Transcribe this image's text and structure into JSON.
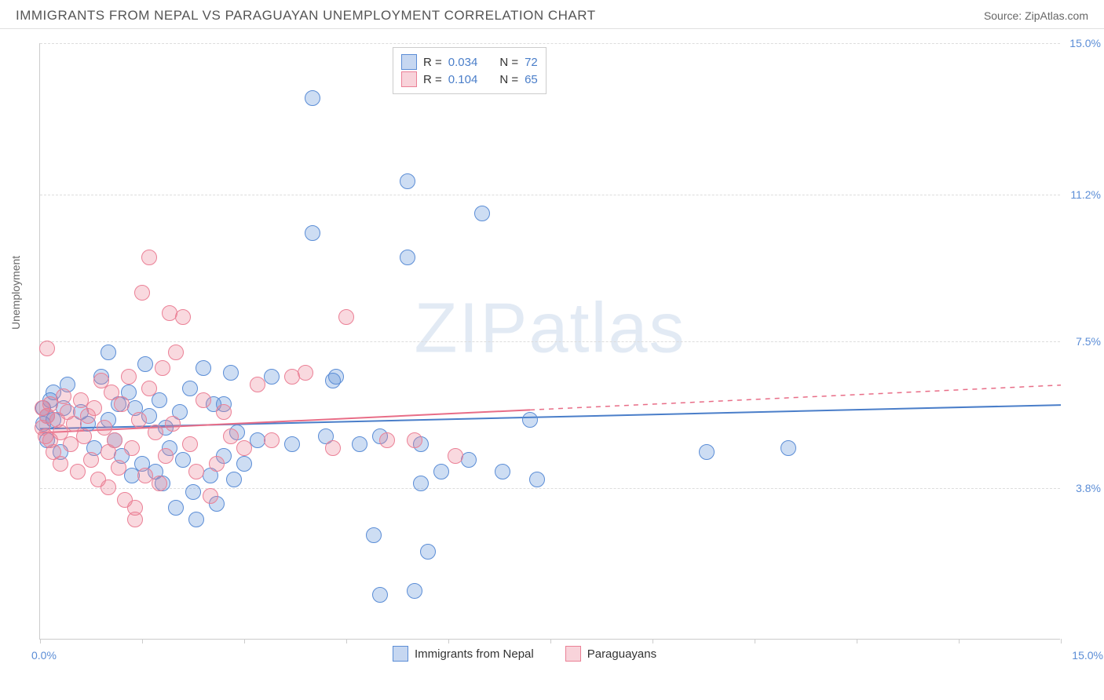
{
  "header": {
    "title": "IMMIGRANTS FROM NEPAL VS PARAGUAYAN UNEMPLOYMENT CORRELATION CHART",
    "source": "Source: ZipAtlas.com"
  },
  "chart": {
    "type": "scatter",
    "y_axis_label": "Unemployment",
    "xlim": [
      0,
      15
    ],
    "ylim": [
      0,
      15
    ],
    "x_axis_labels": [
      {
        "pos": 0,
        "text": "0.0%"
      },
      {
        "pos": 15,
        "text": "15.0%"
      }
    ],
    "x_ticks": [
      0,
      1.5,
      3,
      4.5,
      6,
      7.5,
      9,
      10.5,
      12,
      13.5,
      15
    ],
    "y_ticks": [
      {
        "val": 3.8,
        "label": "3.8%"
      },
      {
        "val": 7.5,
        "label": "7.5%"
      },
      {
        "val": 11.2,
        "label": "11.2%"
      },
      {
        "val": 15.0,
        "label": "15.0%"
      }
    ],
    "background_color": "#ffffff",
    "grid_color": "#dddddd",
    "axis_color": "#cccccc",
    "tick_label_color": "#5b8dd6",
    "watermark": "ZIPatlas",
    "legend_top": {
      "rows": [
        {
          "swatch": "blue",
          "r_label": "R =",
          "r_val": "0.034",
          "n_label": "N =",
          "n_val": "72"
        },
        {
          "swatch": "pink",
          "r_label": "R =",
          "r_val": "0.104",
          "n_label": "N =",
          "n_val": "65"
        }
      ]
    },
    "legend_bottom": [
      {
        "swatch": "blue",
        "label": "Immigrants from Nepal"
      },
      {
        "swatch": "pink",
        "label": "Paraguayans"
      }
    ],
    "series": [
      {
        "name": "Immigrants from Nepal",
        "color_fill": "rgba(91,141,214,0.30)",
        "color_stroke": "#5b8dd6",
        "marker_radius": 10,
        "trend": {
          "y_start": 5.3,
          "y_end": 5.9,
          "solid_until_x": 15,
          "color": "#4a7ec9",
          "width": 2
        },
        "points": [
          [
            0.05,
            5.4
          ],
          [
            0.05,
            5.8
          ],
          [
            0.1,
            5.6
          ],
          [
            0.1,
            5.0
          ],
          [
            0.15,
            6.0
          ],
          [
            0.2,
            5.5
          ],
          [
            0.2,
            6.2
          ],
          [
            0.3,
            4.7
          ],
          [
            0.35,
            5.8
          ],
          [
            0.4,
            6.4
          ],
          [
            0.6,
            5.7
          ],
          [
            0.7,
            5.4
          ],
          [
            0.8,
            4.8
          ],
          [
            0.9,
            6.6
          ],
          [
            1.0,
            5.5
          ],
          [
            1.0,
            7.2
          ],
          [
            1.1,
            5.0
          ],
          [
            1.15,
            5.9
          ],
          [
            1.2,
            4.6
          ],
          [
            1.3,
            6.2
          ],
          [
            1.35,
            4.1
          ],
          [
            1.4,
            5.8
          ],
          [
            1.5,
            4.4
          ],
          [
            1.55,
            6.9
          ],
          [
            1.6,
            5.6
          ],
          [
            1.7,
            4.2
          ],
          [
            1.75,
            6.0
          ],
          [
            1.8,
            3.9
          ],
          [
            1.85,
            5.3
          ],
          [
            1.9,
            4.8
          ],
          [
            2.0,
            3.3
          ],
          [
            2.05,
            5.7
          ],
          [
            2.1,
            4.5
          ],
          [
            2.2,
            6.3
          ],
          [
            2.25,
            3.7
          ],
          [
            2.3,
            3.0
          ],
          [
            2.4,
            6.8
          ],
          [
            2.5,
            4.1
          ],
          [
            2.55,
            5.9
          ],
          [
            2.6,
            3.4
          ],
          [
            2.7,
            4.6
          ],
          [
            2.7,
            5.9
          ],
          [
            2.8,
            6.7
          ],
          [
            2.85,
            4.0
          ],
          [
            2.9,
            5.2
          ],
          [
            3.0,
            4.4
          ],
          [
            3.2,
            5.0
          ],
          [
            3.4,
            6.6
          ],
          [
            3.7,
            4.9
          ],
          [
            4.0,
            10.2
          ],
          [
            4.0,
            13.6
          ],
          [
            4.2,
            5.1
          ],
          [
            4.3,
            6.5
          ],
          [
            4.35,
            6.6
          ],
          [
            4.7,
            4.9
          ],
          [
            4.9,
            2.6
          ],
          [
            5.0,
            1.1
          ],
          [
            5.0,
            5.1
          ],
          [
            5.4,
            11.5
          ],
          [
            5.4,
            9.6
          ],
          [
            5.5,
            1.2
          ],
          [
            5.6,
            3.9
          ],
          [
            5.6,
            4.9
          ],
          [
            5.7,
            2.2
          ],
          [
            5.9,
            4.2
          ],
          [
            6.3,
            4.5
          ],
          [
            6.5,
            10.7
          ],
          [
            6.8,
            4.2
          ],
          [
            7.2,
            5.5
          ],
          [
            7.3,
            4.0
          ],
          [
            9.8,
            4.7
          ],
          [
            11.0,
            4.8
          ]
        ]
      },
      {
        "name": "Paraguayans",
        "color_fill": "rgba(235,128,150,0.30)",
        "color_stroke": "#eb8096",
        "marker_radius": 10,
        "trend": {
          "y_start": 5.2,
          "y_end": 6.4,
          "solid_until_x": 7.2,
          "color": "#e86d87",
          "width": 2
        },
        "points": [
          [
            0.03,
            5.3
          ],
          [
            0.03,
            5.8
          ],
          [
            0.08,
            5.1
          ],
          [
            0.1,
            5.6
          ],
          [
            0.1,
            7.3
          ],
          [
            0.15,
            5.0
          ],
          [
            0.15,
            5.9
          ],
          [
            0.2,
            4.7
          ],
          [
            0.25,
            5.5
          ],
          [
            0.3,
            5.2
          ],
          [
            0.3,
            4.4
          ],
          [
            0.35,
            6.1
          ],
          [
            0.4,
            5.7
          ],
          [
            0.45,
            4.9
          ],
          [
            0.5,
            5.4
          ],
          [
            0.55,
            4.2
          ],
          [
            0.6,
            6.0
          ],
          [
            0.65,
            5.1
          ],
          [
            0.7,
            5.6
          ],
          [
            0.75,
            4.5
          ],
          [
            0.8,
            5.8
          ],
          [
            0.85,
            4.0
          ],
          [
            0.9,
            6.5
          ],
          [
            0.95,
            5.3
          ],
          [
            1.0,
            4.7
          ],
          [
            1.0,
            3.8
          ],
          [
            1.05,
            6.2
          ],
          [
            1.1,
            5.0
          ],
          [
            1.15,
            4.3
          ],
          [
            1.2,
            5.9
          ],
          [
            1.25,
            3.5
          ],
          [
            1.3,
            6.6
          ],
          [
            1.35,
            4.8
          ],
          [
            1.4,
            3.3
          ],
          [
            1.45,
            5.5
          ],
          [
            1.5,
            8.7
          ],
          [
            1.55,
            4.1
          ],
          [
            1.6,
            6.3
          ],
          [
            1.6,
            9.6
          ],
          [
            1.7,
            5.2
          ],
          [
            1.75,
            3.9
          ],
          [
            1.8,
            6.8
          ],
          [
            1.85,
            4.6
          ],
          [
            1.9,
            8.2
          ],
          [
            1.95,
            5.4
          ],
          [
            2.0,
            7.2
          ],
          [
            2.1,
            8.1
          ],
          [
            2.2,
            4.9
          ],
          [
            2.3,
            4.2
          ],
          [
            2.4,
            6.0
          ],
          [
            2.5,
            3.6
          ],
          [
            2.6,
            4.4
          ],
          [
            2.7,
            5.7
          ],
          [
            2.8,
            5.1
          ],
          [
            3.0,
            4.8
          ],
          [
            3.2,
            6.4
          ],
          [
            3.4,
            5.0
          ],
          [
            3.7,
            6.6
          ],
          [
            3.9,
            6.7
          ],
          [
            4.3,
            4.8
          ],
          [
            4.5,
            8.1
          ],
          [
            5.1,
            5.0
          ],
          [
            5.5,
            5.0
          ],
          [
            6.1,
            4.6
          ],
          [
            1.4,
            3.0
          ]
        ]
      }
    ]
  }
}
